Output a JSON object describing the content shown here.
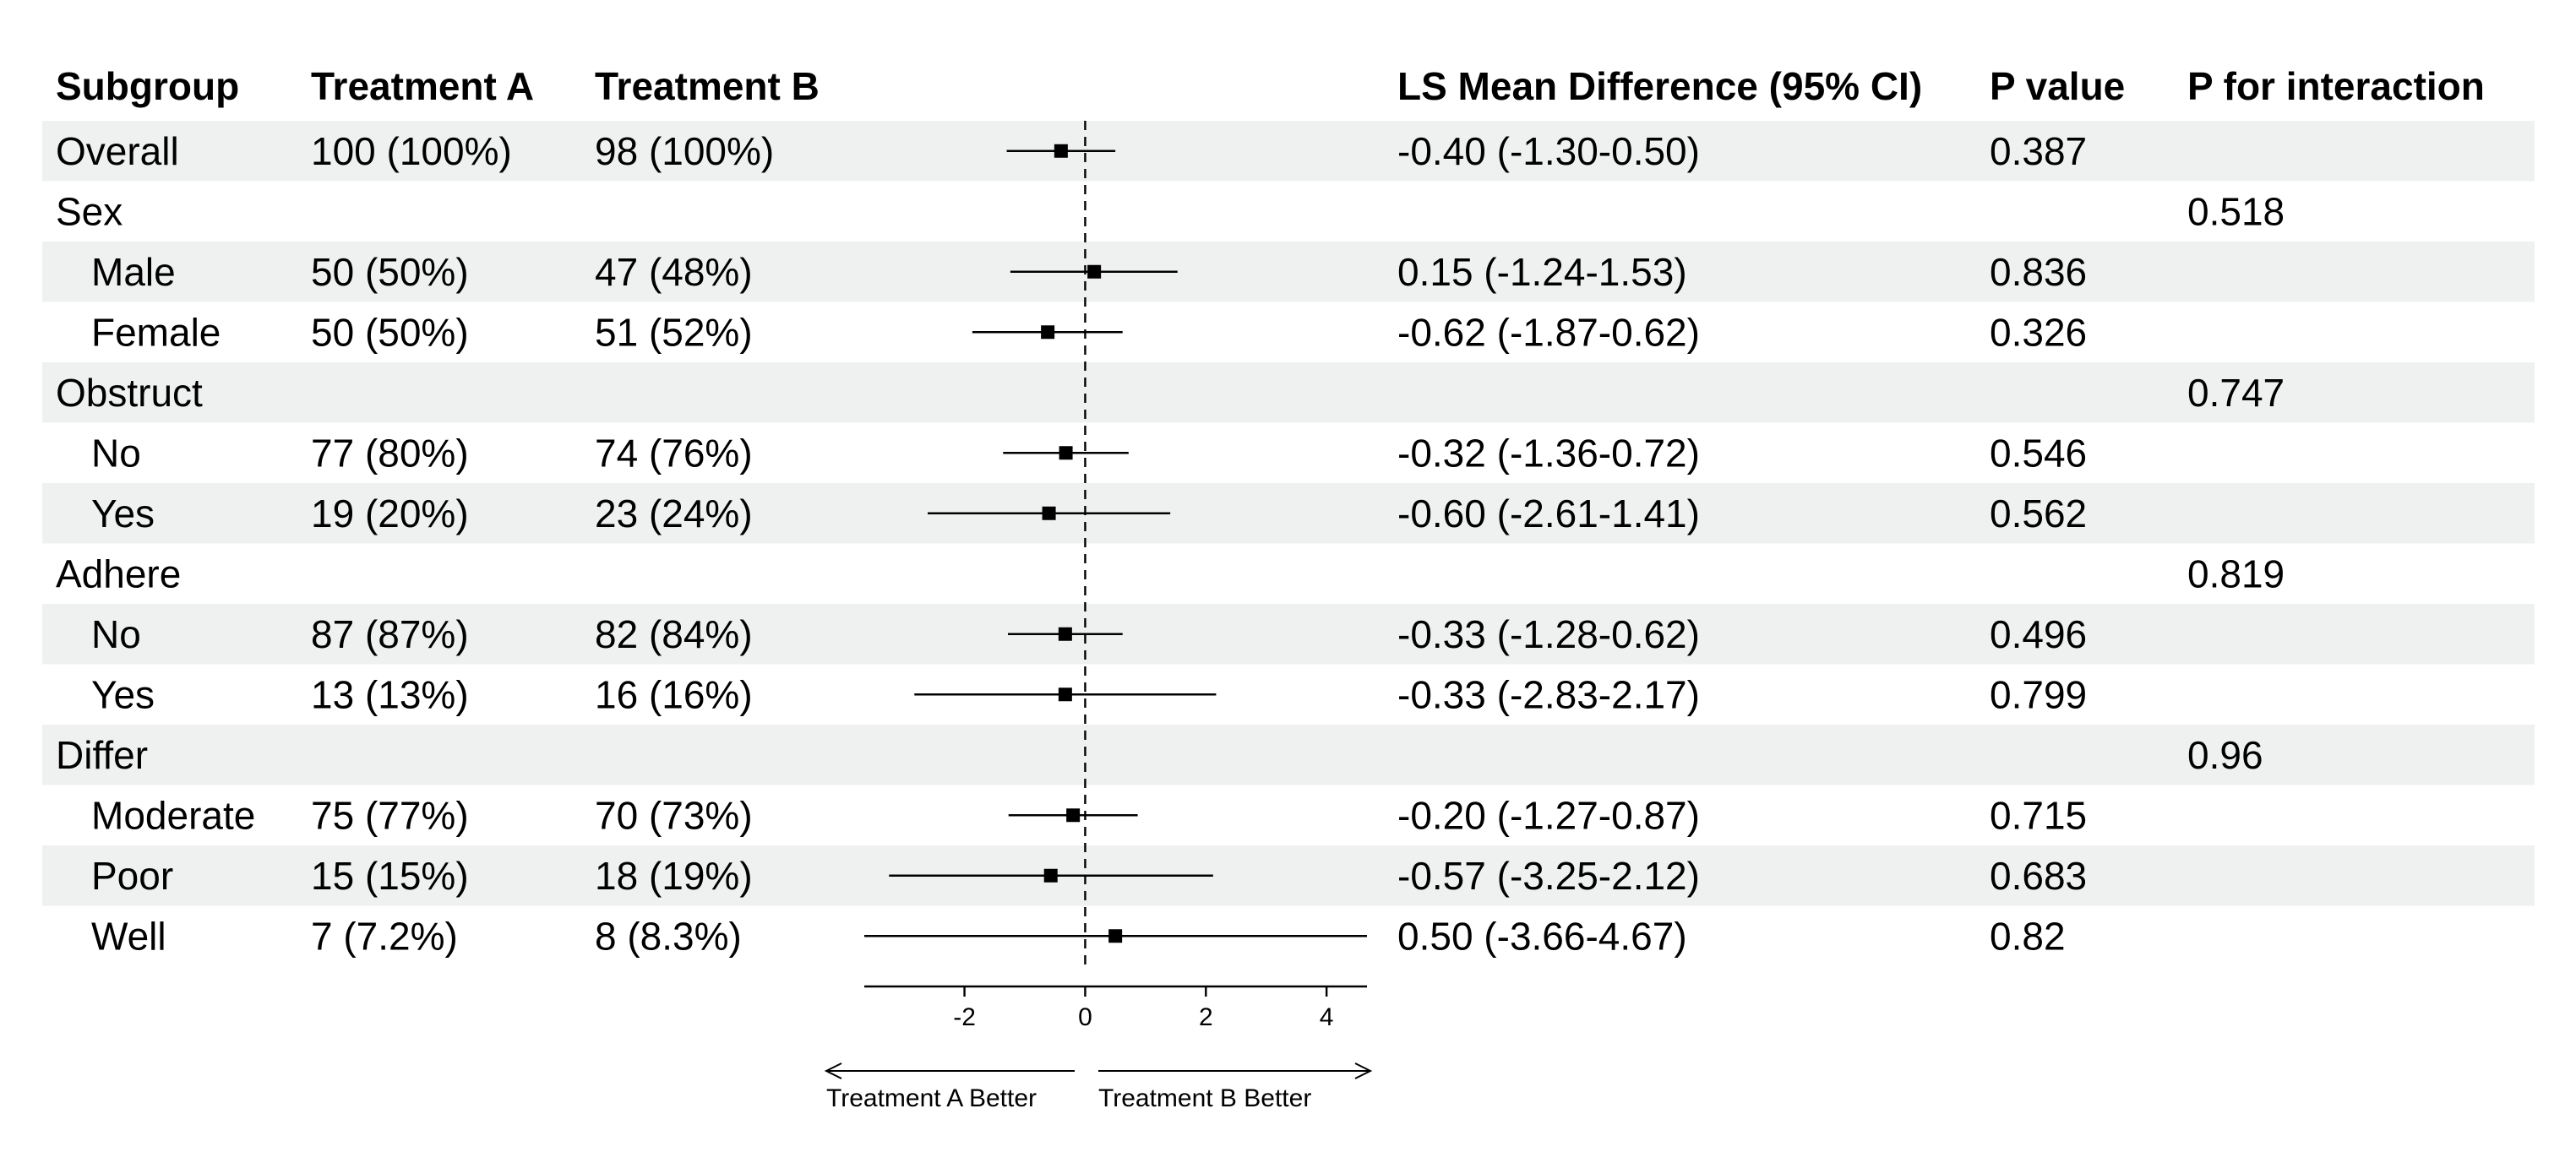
{
  "chart_data": {
    "type": "forest",
    "columns": [
      "Subgroup",
      "Treatment A",
      "Treatment B",
      "LS Mean Difference (95% CI)",
      "P value",
      "P for interaction"
    ],
    "rows": [
      {
        "label": "Overall",
        "indent": false,
        "shaded": true,
        "treatment_a": "100 (100%)",
        "treatment_b": "98 (100%)",
        "ci_text": "-0.40 (-1.30-0.50)",
        "p": "0.387",
        "p_int": "",
        "est": -0.4,
        "lo": -1.3,
        "hi": 0.5
      },
      {
        "label": "Sex",
        "indent": false,
        "shaded": false,
        "treatment_a": "",
        "treatment_b": "",
        "ci_text": "",
        "p": "",
        "p_int": "0.518"
      },
      {
        "label": "Male",
        "indent": true,
        "shaded": true,
        "treatment_a": "50 (50%)",
        "treatment_b": "47 (48%)",
        "ci_text": "0.15 (-1.24-1.53)",
        "p": "0.836",
        "p_int": "",
        "est": 0.15,
        "lo": -1.24,
        "hi": 1.53
      },
      {
        "label": "Female",
        "indent": true,
        "shaded": false,
        "treatment_a": "50 (50%)",
        "treatment_b": "51 (52%)",
        "ci_text": "-0.62 (-1.87-0.62)",
        "p": "0.326",
        "p_int": "",
        "est": -0.62,
        "lo": -1.87,
        "hi": 0.62
      },
      {
        "label": "Obstruct",
        "indent": false,
        "shaded": true,
        "treatment_a": "",
        "treatment_b": "",
        "ci_text": "",
        "p": "",
        "p_int": "0.747"
      },
      {
        "label": "No",
        "indent": true,
        "shaded": false,
        "treatment_a": "77 (80%)",
        "treatment_b": "74 (76%)",
        "ci_text": "-0.32 (-1.36-0.72)",
        "p": "0.546",
        "p_int": "",
        "est": -0.32,
        "lo": -1.36,
        "hi": 0.72
      },
      {
        "label": "Yes",
        "indent": true,
        "shaded": true,
        "treatment_a": "19 (20%)",
        "treatment_b": "23 (24%)",
        "ci_text": "-0.60 (-2.61-1.41)",
        "p": "0.562",
        "p_int": "",
        "est": -0.6,
        "lo": -2.61,
        "hi": 1.41
      },
      {
        "label": "Adhere",
        "indent": false,
        "shaded": false,
        "treatment_a": "",
        "treatment_b": "",
        "ci_text": "",
        "p": "",
        "p_int": "0.819"
      },
      {
        "label": "No",
        "indent": true,
        "shaded": true,
        "treatment_a": "87 (87%)",
        "treatment_b": "82 (84%)",
        "ci_text": "-0.33 (-1.28-0.62)",
        "p": "0.496",
        "p_int": "",
        "est": -0.33,
        "lo": -1.28,
        "hi": 0.62
      },
      {
        "label": "Yes",
        "indent": true,
        "shaded": false,
        "treatment_a": "13 (13%)",
        "treatment_b": "16 (16%)",
        "ci_text": "-0.33 (-2.83-2.17)",
        "p": "0.799",
        "p_int": "",
        "est": -0.33,
        "lo": -2.83,
        "hi": 2.17
      },
      {
        "label": "Differ",
        "indent": false,
        "shaded": true,
        "treatment_a": "",
        "treatment_b": "",
        "ci_text": "",
        "p": "",
        "p_int": "0.96"
      },
      {
        "label": "Moderate",
        "indent": true,
        "shaded": false,
        "treatment_a": "75 (77%)",
        "treatment_b": "70 (73%)",
        "ci_text": "-0.20 (-1.27-0.87)",
        "p": "0.715",
        "p_int": "",
        "est": -0.2,
        "lo": -1.27,
        "hi": 0.87
      },
      {
        "label": "Poor",
        "indent": true,
        "shaded": true,
        "treatment_a": "15 (15%)",
        "treatment_b": "18 (19%)",
        "ci_text": "-0.57 (-3.25-2.12)",
        "p": "0.683",
        "p_int": "",
        "est": -0.57,
        "lo": -3.25,
        "hi": 2.12
      },
      {
        "label": "Well",
        "indent": true,
        "shaded": false,
        "treatment_a": "7 (7.2%)",
        "treatment_b": "8 (8.3%)",
        "ci_text": "0.50 (-3.66-4.67)",
        "p": "0.82",
        "p_int": "",
        "est": 0.5,
        "lo": -3.66,
        "hi": 4.67
      }
    ],
    "xlim": [
      -3.66,
      4.67
    ],
    "xticks": [
      -2,
      0,
      2,
      4
    ],
    "reference_line": 0,
    "arrow_left_label": "Treatment A Better",
    "arrow_right_label": "Treatment B Better",
    "colors": {
      "row_shade": "#eff1f0",
      "marks": "#000000"
    }
  }
}
